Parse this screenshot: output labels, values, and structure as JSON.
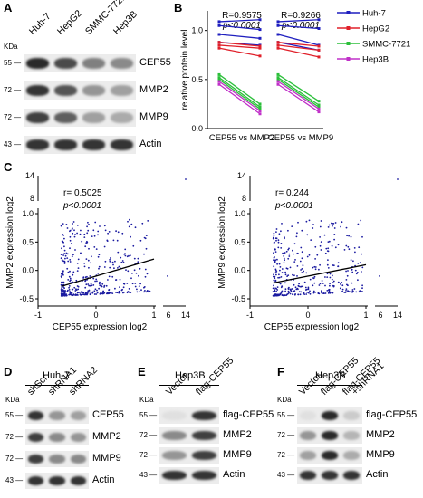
{
  "panels": {
    "A": {
      "label": "A",
      "kda_label": "KDa",
      "lanes": [
        "Huh-7",
        "HepG2",
        "SMMC-7721",
        "Hep3B"
      ],
      "rows": [
        {
          "kda": "55",
          "name": "CEP55",
          "intensity": [
            0.9,
            0.75,
            0.5,
            0.45
          ]
        },
        {
          "kda": "72",
          "name": "MMP2",
          "intensity": [
            0.85,
            0.7,
            0.4,
            0.35
          ]
        },
        {
          "kda": "72",
          "name": "MMP9",
          "intensity": [
            0.8,
            0.65,
            0.35,
            0.3
          ]
        },
        {
          "kda": "43",
          "name": "Actin",
          "intensity": [
            0.85,
            0.85,
            0.85,
            0.85
          ]
        }
      ]
    },
    "B": {
      "label": "B",
      "stat1": "R=0.9575",
      "p1": "p<0.0001",
      "stat2": "R=0.9266",
      "p2": "p<0.0001",
      "ylabel": "relative protein level",
      "yticks": [
        "0.0",
        "0.5",
        "1.0"
      ],
      "xlabels": [
        "CEP55 vs MMP2",
        "CEP55 vs MMP9"
      ],
      "legend": [
        {
          "name": "Huh-7",
          "color": "#1f1fbf"
        },
        {
          "name": "HepG2",
          "color": "#e0202a"
        },
        {
          "name": "SMMC-7721",
          "color": "#2bbf3a"
        },
        {
          "name": "Hep3B",
          "color": "#c030c8"
        }
      ]
    },
    "C": {
      "label": "C",
      "left": {
        "stat": "r= 0.5025",
        "p": "p<0.0001",
        "ylabel": "MMP2 expression  log2",
        "xlabel": "CEP55 expression  log2",
        "yticks_top": [
          "14",
          "8"
        ],
        "yticks": [
          "1.0",
          "0.5",
          "0.0",
          "-0.5"
        ],
        "xticks": [
          "-1",
          "0",
          "1",
          "6",
          "14"
        ]
      },
      "right": {
        "stat": "r= 0.244",
        "p": "p<0.0001",
        "ylabel": "MMP9 expression  log2",
        "xlabel": "CEP55 expression  log2",
        "yticks_top": [
          "14",
          "8"
        ],
        "yticks": [
          "1.0",
          "0.5",
          "0.0",
          "-0.5"
        ],
        "xticks": [
          "-1",
          "0",
          "1",
          "6",
          "14"
        ]
      }
    },
    "D": {
      "label": "D",
      "title": "Huh-7",
      "kda_label": "KDa",
      "lanes": [
        "shScr",
        "shRNA1",
        "shRNA2"
      ],
      "rows": [
        {
          "kda": "55",
          "name": "CEP55",
          "intensity": [
            0.85,
            0.4,
            0.35
          ]
        },
        {
          "kda": "72",
          "name": "MMP2",
          "intensity": [
            0.8,
            0.45,
            0.4
          ]
        },
        {
          "kda": "72",
          "name": "MMP9",
          "intensity": [
            0.8,
            0.45,
            0.45
          ]
        },
        {
          "kda": "43",
          "name": "Actin",
          "intensity": [
            0.85,
            0.85,
            0.85
          ]
        }
      ]
    },
    "E": {
      "label": "E",
      "title": "Hep3B",
      "kda_label": "KDa",
      "lanes": [
        "Vector",
        "flag-CEP55"
      ],
      "rows": [
        {
          "kda": "55",
          "name": "flag-CEP55",
          "intensity": [
            0.05,
            0.85
          ]
        },
        {
          "kda": "72",
          "name": "MMP2",
          "intensity": [
            0.45,
            0.8
          ]
        },
        {
          "kda": "72",
          "name": "MMP9",
          "intensity": [
            0.4,
            0.8
          ]
        },
        {
          "kda": "43",
          "name": "Actin",
          "intensity": [
            0.85,
            0.85
          ]
        }
      ]
    },
    "F": {
      "label": "F",
      "title": "Hep3B",
      "kda_label": "KDa",
      "lanes": [
        "Vector",
        "flag-CEP55",
        "flag-CEP55\n+shRNA1"
      ],
      "rows": [
        {
          "kda": "55",
          "name": "flag-CEP55",
          "intensity": [
            0.05,
            0.9,
            0.15
          ]
        },
        {
          "kda": "72",
          "name": "MMP2",
          "intensity": [
            0.4,
            0.9,
            0.25
          ]
        },
        {
          "kda": "72",
          "name": "MMP9",
          "intensity": [
            0.35,
            0.9,
            0.3
          ]
        },
        {
          "kda": "43",
          "name": "Actin",
          "intensity": [
            0.85,
            0.85,
            0.85
          ]
        }
      ]
    }
  },
  "chart_data": [
    {
      "type": "line",
      "panel": "B",
      "xlabels": [
        "CEP55 vs MMP2",
        "CEP55 vs MMP9"
      ],
      "ylim": [
        0,
        1.2
      ],
      "series": [
        {
          "name": "Huh-7",
          "color": "#1f1fbf",
          "pairs": [
            [
              1.09,
              1.11
            ],
            [
              1.05,
              1.01
            ],
            [
              0.96,
              0.92
            ],
            [
              0.88,
              0.85
            ],
            [
              1.09,
              1.11
            ],
            [
              1.05,
              1.02
            ],
            [
              0.96,
              0.85
            ],
            [
              0.88,
              0.8
            ]
          ]
        },
        {
          "name": "HepG2",
          "color": "#e0202a",
          "pairs": [
            [
              0.85,
              0.82
            ],
            [
              0.82,
              0.74
            ],
            [
              0.88,
              0.84
            ],
            [
              0.85,
              0.8
            ],
            [
              0.82,
              0.73
            ],
            [
              0.88,
              0.84
            ]
          ]
        },
        {
          "name": "SMMC-7721",
          "color": "#2bbf3a",
          "pairs": [
            [
              0.55,
              0.25
            ],
            [
              0.52,
              0.22
            ],
            [
              0.5,
              0.2
            ],
            [
              0.55,
              0.28
            ],
            [
              0.52,
              0.24
            ],
            [
              0.5,
              0.22
            ]
          ]
        },
        {
          "name": "Hep3B",
          "color": "#c030c8",
          "pairs": [
            [
              0.48,
              0.18
            ],
            [
              0.45,
              0.15
            ],
            [
              0.48,
              0.2
            ],
            [
              0.45,
              0.17
            ]
          ]
        }
      ]
    },
    {
      "type": "scatter",
      "panel": "C-left",
      "xlabel": "CEP55 expression  log2",
      "ylabel": "MMP2 expression  log2",
      "xlim": [
        -1,
        1
      ],
      "ylim": [
        -0.5,
        1.0
      ],
      "trend": [
        [
          -0.6,
          -0.28
        ],
        [
          1.0,
          0.2
        ]
      ],
      "seed": 7,
      "count": 420
    },
    {
      "type": "scatter",
      "panel": "C-right",
      "xlabel": "CEP55 expression  log2",
      "ylabel": "MMP9 expression  log2",
      "xlim": [
        -1,
        1
      ],
      "ylim": [
        -0.5,
        1.0
      ],
      "trend": [
        [
          -0.6,
          -0.22
        ],
        [
          1.0,
          0.1
        ]
      ],
      "seed": 13,
      "count": 380
    }
  ]
}
